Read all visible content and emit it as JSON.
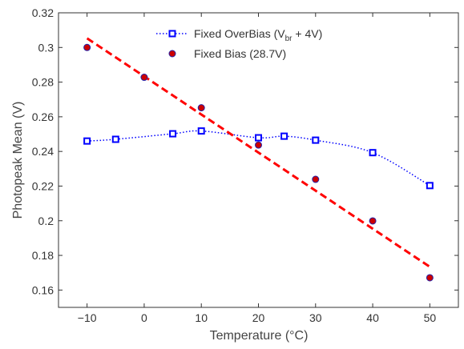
{
  "chart_data": {
    "type": "scatter",
    "xlabel": "Temperature (°C)",
    "ylabel": "Photopeak Mean (V)",
    "xlim": [
      -15,
      55
    ],
    "ylim": [
      0.15,
      0.32
    ],
    "xticks": [
      -10,
      0,
      10,
      20,
      30,
      40,
      50
    ],
    "xtick_labels": [
      "−10",
      "0",
      "10",
      "20",
      "30",
      "40",
      "50"
    ],
    "yticks": [
      0.16,
      0.18,
      0.2,
      0.22,
      0.24,
      0.26,
      0.28,
      0.3,
      0.32
    ],
    "ytick_labels": [
      "0.16",
      "0.18",
      "0.2",
      "0.22",
      "0.24",
      "0.26",
      "0.28",
      "0.3",
      "0.32"
    ],
    "grid": false,
    "legend_position": "top-center",
    "series": [
      {
        "name": "Fixed OverBias (Vbr + 4V)",
        "legend": {
          "prefix": "Fixed OverBias (V",
          "sub": "br",
          "suffix": " + 4V)"
        },
        "marker": "open-square",
        "color": "#0000ff",
        "line_style": "dotted",
        "x": [
          -10,
          -5,
          5,
          10,
          20,
          24.5,
          30,
          40,
          50
        ],
        "y": [
          0.246,
          0.247,
          0.2502,
          0.2518,
          0.2479,
          0.2488,
          0.2465,
          0.2393,
          0.2203
        ]
      },
      {
        "name": "Fixed Bias (28.7V)",
        "legend": {
          "prefix": "Fixed Bias (28.7V)",
          "sub": "",
          "suffix": ""
        },
        "marker": "filled-circle",
        "color": "#cc0000",
        "edge_color": "#2222aa",
        "fit": {
          "style": "dashed",
          "color": "#ff0000",
          "x": [
            -10,
            50
          ],
          "y": [
            0.3053,
            0.1734
          ]
        },
        "x": [
          -10,
          0,
          10,
          20,
          30,
          40,
          50
        ],
        "y": [
          0.3,
          0.2828,
          0.2652,
          0.2437,
          0.2239,
          0.1999,
          0.1671
        ]
      }
    ]
  }
}
